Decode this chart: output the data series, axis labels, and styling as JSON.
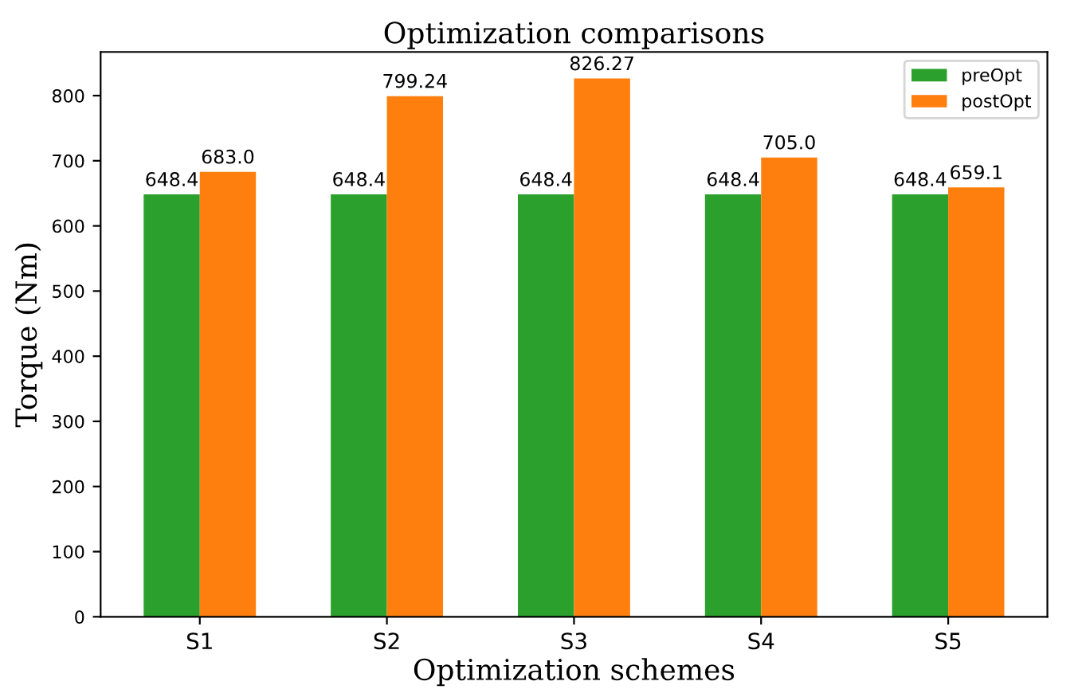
{
  "chart_data": {
    "type": "bar",
    "title": "Optimization comparisons",
    "xlabel": "Optimization schemes",
    "ylabel": "Torque (Nm)",
    "categories": [
      "S1",
      "S2",
      "S3",
      "S4",
      "S5"
    ],
    "series": [
      {
        "name": "preOpt",
        "color": "#2ca02c",
        "values": [
          648.4,
          648.4,
          648.4,
          648.4,
          648.4
        ],
        "value_labels": [
          "648.4",
          "648.4",
          "648.4",
          "648.4",
          "648.4"
        ]
      },
      {
        "name": "postOpt",
        "color": "#ff7f0e",
        "values": [
          683.0,
          799.24,
          826.27,
          705.0,
          659.1
        ],
        "value_labels": [
          "683.0",
          "799.24",
          "826.27",
          "705.0",
          "659.1"
        ]
      }
    ],
    "ylim": [
      0,
      867
    ],
    "yticks": [
      0,
      100,
      200,
      300,
      400,
      500,
      600,
      700,
      800
    ],
    "grid": false,
    "legend": "top right"
  }
}
